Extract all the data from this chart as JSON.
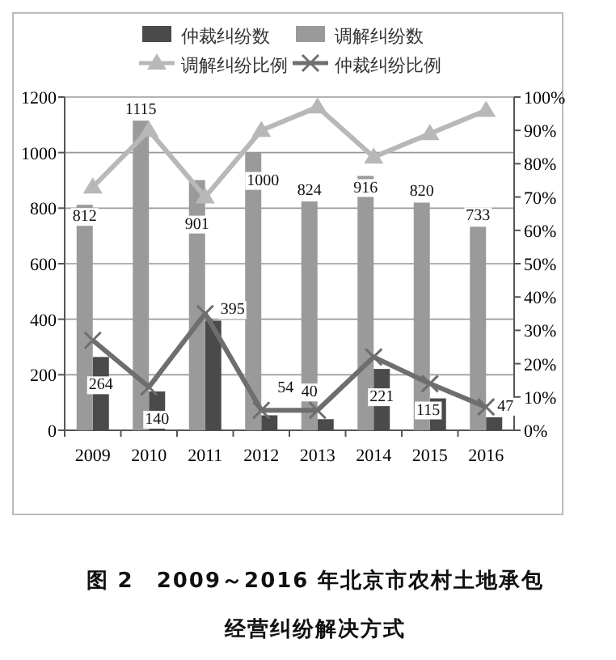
{
  "chart_data": {
    "type": "bar",
    "title": "图 2　2009～2016 年北京市农村土地承包经营纠纷解决方式",
    "categories": [
      "2009",
      "2010",
      "2011",
      "2012",
      "2013",
      "2014",
      "2015",
      "2016"
    ],
    "series": [
      {
        "name": "仲裁纠纷数",
        "color": "#4a4a4a",
        "values": [
          264,
          140,
          395,
          54,
          40,
          221,
          115,
          47
        ],
        "value_labels": [
          "264",
          "140",
          "395",
          "54",
          "40",
          "221",
          "115",
          "47"
        ]
      },
      {
        "name": "调解纠纷数",
        "color": "#9a9a9a",
        "values": [
          812,
          1115,
          901,
          1000,
          824,
          916,
          820,
          733
        ],
        "value_labels": [
          "812",
          "1115",
          "901",
          "1000",
          "824",
          "916",
          "820",
          "733"
        ]
      },
      {
        "name": "调解纠纷比例",
        "type": "line",
        "axis": "y2",
        "marker": "triangle",
        "color": "#b8b8b8",
        "values": [
          73,
          90,
          70,
          90,
          97,
          82,
          89,
          96
        ]
      },
      {
        "name": "仲裁纠纷比例",
        "type": "line",
        "axis": "y2",
        "marker": "cross",
        "color": "#6e6e6e",
        "values": [
          27,
          13,
          35,
          6,
          6,
          22,
          14,
          7
        ]
      }
    ],
    "ylim": [
      0,
      1200
    ],
    "yticks": [
      0,
      200,
      400,
      600,
      800,
      1000,
      1200
    ],
    "y2lim": [
      0,
      100
    ],
    "y2ticks": [
      {
        "value": 0,
        "label": "0%"
      },
      {
        "value": 10,
        "label": "10%"
      },
      {
        "value": 20,
        "label": "20%"
      },
      {
        "value": 30,
        "label": "30%"
      },
      {
        "value": 40,
        "label": "40%"
      },
      {
        "value": 50,
        "label": "50%"
      },
      {
        "value": 60,
        "label": "60%"
      },
      {
        "value": 70,
        "label": "70%"
      },
      {
        "value": 80,
        "label": "80%"
      },
      {
        "value": 90,
        "label": "90%"
      },
      {
        "value": 100,
        "label": "100%"
      }
    ],
    "grid": "y",
    "legend": "top"
  }
}
